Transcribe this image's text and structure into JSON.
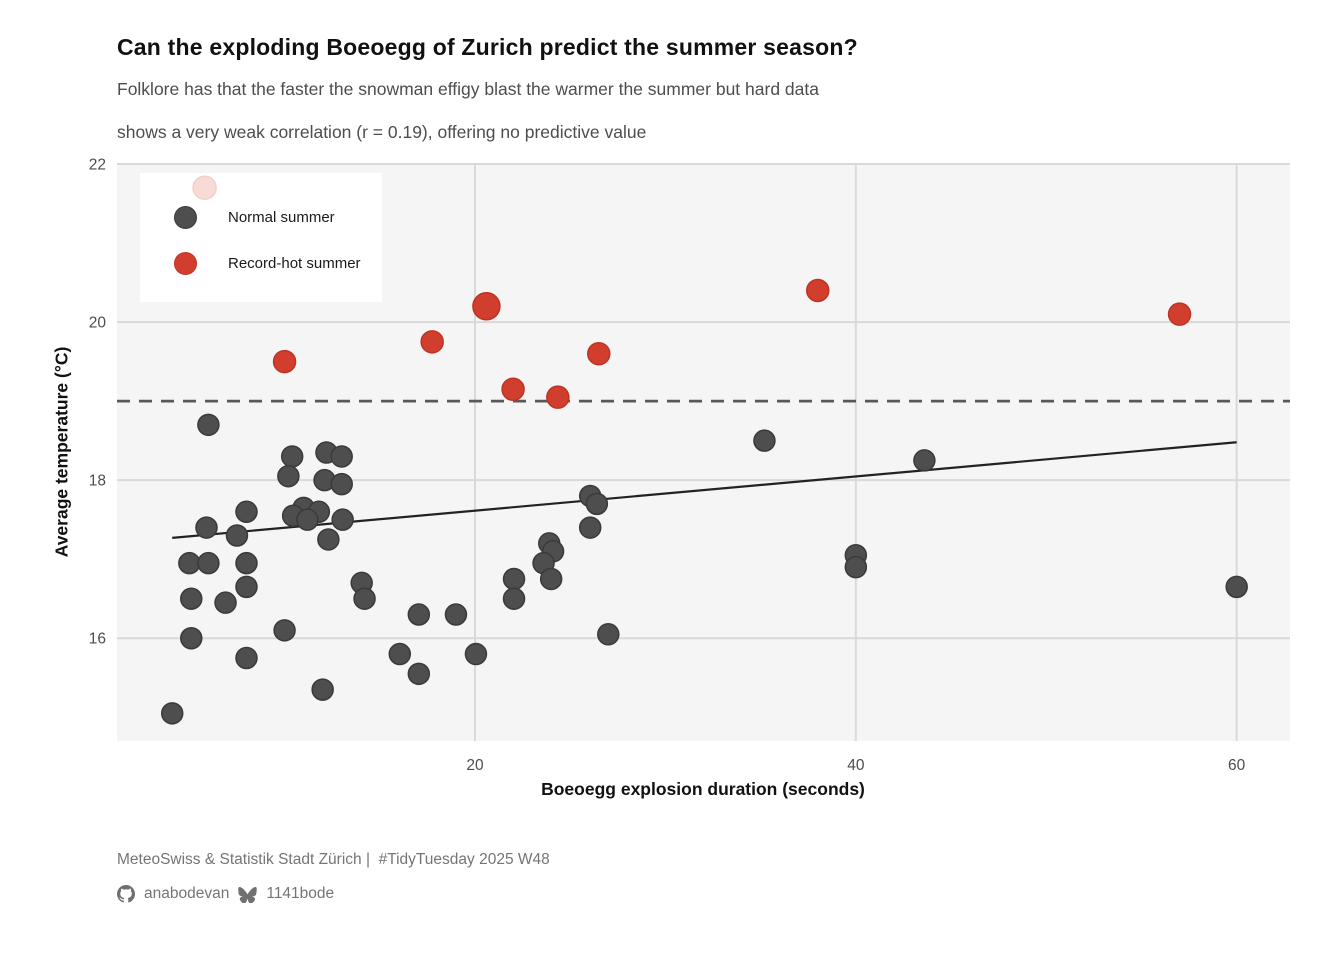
{
  "header": {
    "title": "Can the exploding Boeoegg of Zurich predict the summer season?",
    "subtitle_line1": "Folklore has that the faster the snowman effigy blast the warmer the summer but hard data",
    "subtitle_line2": "shows a very weak correlation (r = 0.19), offering no predictive value"
  },
  "legend": {
    "items": [
      {
        "label": "Normal summer",
        "color": "#4e4e4e"
      },
      {
        "label": "Record-hot summer",
        "color": "#d13e2d"
      }
    ]
  },
  "footer": {
    "source_line": "MeteoSwiss & Statistik Stadt Zürich |  #TidyTuesday 2025 W48",
    "github_handle": "anabodevan",
    "bluesky_handle": "1141bode",
    "icons": [
      "github-icon",
      "bluesky-butterfly-icon"
    ]
  },
  "chart_data": {
    "type": "scatter",
    "title": "Can the exploding Boeoegg of Zurich predict the summer season?",
    "xlabel": "Boeoegg explosion duration (seconds)",
    "ylabel": "Average temperature (°C)",
    "xlim": [
      1.2,
      62.8
    ],
    "ylim": [
      14.7,
      22.0
    ],
    "x_ticks": [
      20,
      40,
      60
    ],
    "y_ticks": [
      16,
      18,
      20,
      22
    ],
    "grid": true,
    "panel_color": "#f5f5f5",
    "gridline_color": "#d9d9d9",
    "legend_position": "top-left-inside",
    "reference_line": {
      "y": 19,
      "style": "dashed",
      "color": "#595959"
    },
    "trend_line": {
      "x1": 4.1,
      "y1": 17.27,
      "x2": 60.0,
      "y2": 18.48,
      "color": "#222222",
      "note": "r = 0.19"
    },
    "faded_point": {
      "x": 5.8,
      "y": 21.7,
      "r": 11.5,
      "color": "#f8dbd5",
      "stroke": "#f2cfc8"
    },
    "series": [
      {
        "name": "Normal summer",
        "color": "#4e4e4e",
        "stroke": "#3a3a3a",
        "r": 10.5,
        "points": [
          [
            6.0,
            18.7
          ],
          [
            10.4,
            18.3
          ],
          [
            12.2,
            18.35
          ],
          [
            13.0,
            18.3
          ],
          [
            10.2,
            18.05
          ],
          [
            12.1,
            18.0
          ],
          [
            13.0,
            17.95
          ],
          [
            11.0,
            17.65
          ],
          [
            11.8,
            17.6
          ],
          [
            10.45,
            17.55
          ],
          [
            11.2,
            17.5
          ],
          [
            13.05,
            17.5
          ],
          [
            12.3,
            17.25
          ],
          [
            8.0,
            17.6
          ],
          [
            5.9,
            17.4
          ],
          [
            7.5,
            17.3
          ],
          [
            5.0,
            16.95
          ],
          [
            6.0,
            16.95
          ],
          [
            8.0,
            16.95
          ],
          [
            5.1,
            16.5
          ],
          [
            6.9,
            16.45
          ],
          [
            8.0,
            16.65
          ],
          [
            5.1,
            16.0
          ],
          [
            10.0,
            16.1
          ],
          [
            8.0,
            15.75
          ],
          [
            12.0,
            15.35
          ],
          [
            4.1,
            15.05
          ],
          [
            14.05,
            16.7
          ],
          [
            14.2,
            16.5
          ],
          [
            17.05,
            16.3
          ],
          [
            19.0,
            16.3
          ],
          [
            16.05,
            15.8
          ],
          [
            17.05,
            15.55
          ],
          [
            20.05,
            15.8
          ],
          [
            22.05,
            16.75
          ],
          [
            22.05,
            16.5
          ],
          [
            23.9,
            17.2
          ],
          [
            24.1,
            17.1
          ],
          [
            23.6,
            16.95
          ],
          [
            24.0,
            16.75
          ],
          [
            26.05,
            17.8
          ],
          [
            26.4,
            17.7
          ],
          [
            26.05,
            17.4
          ],
          [
            27.0,
            16.05
          ],
          [
            35.2,
            18.5
          ],
          [
            43.6,
            18.25
          ],
          [
            40.0,
            17.05
          ],
          [
            40.0,
            16.9
          ],
          [
            60.0,
            16.65
          ]
        ]
      },
      {
        "name": "Record-hot summer",
        "color": "#d13e2d",
        "stroke": "#bd3424",
        "r": 11,
        "points": [
          [
            20.6,
            20.2,
            13.5
          ],
          [
            17.75,
            19.75
          ],
          [
            10.0,
            19.5
          ],
          [
            26.5,
            19.6
          ],
          [
            22.0,
            19.15
          ],
          [
            24.35,
            19.05
          ],
          [
            38.0,
            20.4
          ],
          [
            57.0,
            20.1
          ]
        ]
      }
    ]
  }
}
